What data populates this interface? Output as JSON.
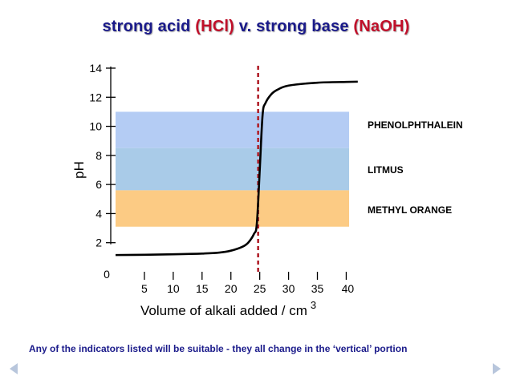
{
  "title": {
    "part1": "strong acid ",
    "part2": "(HCl)",
    "part3": " v. strong base ",
    "part4": "(NaOH)"
  },
  "caption": "Any of the indicators listed will be suitable - they all change in the ‘vertical’ portion",
  "colors": {
    "phenolphthalein": "#b4ccf4",
    "litmus": "#a9cbe8",
    "methyl_orange": "#fccb84",
    "curve": "#000000",
    "equivalence_line": "#b0202a",
    "title_blue": "#1a1a8a",
    "title_red": "#c0102a"
  },
  "navigation": {
    "prev_icon": "triangle-left-icon",
    "next_icon": "triangle-right-icon"
  },
  "chart_data": {
    "type": "line",
    "xlabel": "Volume of alkali added / cm",
    "xlabel_superscript": "3",
    "ylabel": "pH",
    "xlim": [
      0,
      43
    ],
    "ylim": [
      0,
      14
    ],
    "x_ticks": [
      5,
      10,
      15,
      20,
      25,
      30,
      35,
      40
    ],
    "y_ticks": [
      2,
      4,
      6,
      8,
      10,
      12,
      14
    ],
    "origin_label": "0",
    "grid": false,
    "series": [
      {
        "x": [
          0,
          5,
          10,
          15,
          18,
          20,
          22,
          23,
          24,
          24.5,
          25,
          25.5,
          26,
          27,
          28,
          30,
          35,
          40,
          42
        ],
        "y": [
          1.15,
          1.17,
          1.2,
          1.25,
          1.32,
          1.45,
          1.72,
          2.0,
          2.6,
          3.3,
          7.0,
          10.8,
          11.6,
          12.2,
          12.5,
          12.8,
          13.0,
          13.05,
          13.07
        ]
      }
    ],
    "equivalence_x": 25,
    "indicators": [
      {
        "name": "PHENOLPHTHALEIN",
        "ph_low": 8.5,
        "ph_high": 11.0,
        "color_key": "phenolphthalein"
      },
      {
        "name": "LITMUS",
        "ph_low": 5.6,
        "ph_high": 8.5,
        "color_key": "litmus"
      },
      {
        "name": "METHYL ORANGE",
        "ph_low": 3.1,
        "ph_high": 5.6,
        "color_key": "methyl_orange"
      }
    ],
    "indicator_x_range": [
      0,
      40.5
    ]
  }
}
